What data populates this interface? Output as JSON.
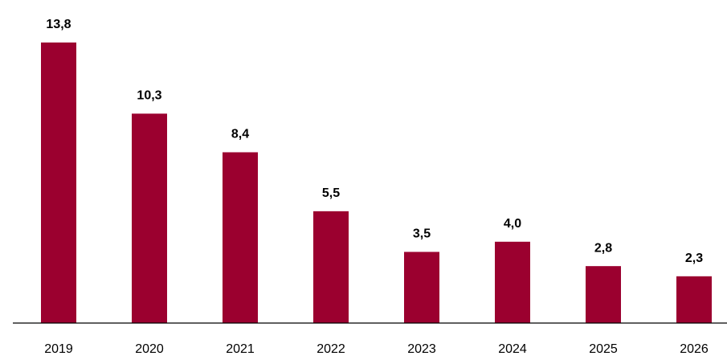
{
  "chart_data": {
    "type": "bar",
    "categories": [
      "2019",
      "2020",
      "2021",
      "2022",
      "2023",
      "2024",
      "2025",
      "2026"
    ],
    "values": [
      13.8,
      10.3,
      8.4,
      5.5,
      3.5,
      4.0,
      2.8,
      2.3
    ],
    "value_labels": [
      "13,8",
      "10,3",
      "8,4",
      "5,5",
      "3,5",
      "4,0",
      "2,8",
      "2,3"
    ],
    "color": "#9b002f",
    "ylim": [
      0,
      15
    ]
  }
}
